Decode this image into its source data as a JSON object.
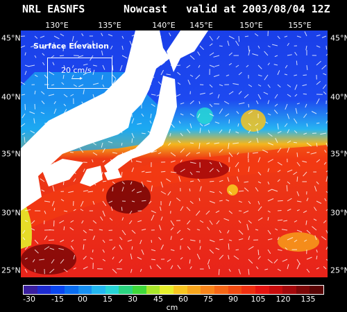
{
  "title": {
    "left": "NRL EASNFS",
    "middle": "Nowcast",
    "right": "valid at 2003/08/04 12Z"
  },
  "longitudes": [
    "130°E",
    "135°E",
    "140°E",
    "145°E",
    "150°E",
    "155°E"
  ],
  "latitudes": [
    "45°N",
    "40°N",
    "35°N",
    "30°N",
    "25°N"
  ],
  "legend": {
    "title": "Surface Elevation",
    "reference_vector": "20 cm/s"
  },
  "colorbar": {
    "ticks": [
      "-30",
      "-15",
      "00",
      "15",
      "30",
      "45",
      "60",
      "75",
      "90",
      "105",
      "120",
      "135"
    ],
    "unit": "cm",
    "colors": [
      "#3a1fa0",
      "#1d2bd0",
      "#0a47f0",
      "#0a6df0",
      "#168ff2",
      "#23b7f0",
      "#27d4d6",
      "#2bd480",
      "#3fd83a",
      "#a8e62a",
      "#e6ee2a",
      "#f7c51f",
      "#f7a51c",
      "#f7841a",
      "#f56615",
      "#f24a10",
      "#ee2f10",
      "#e51410",
      "#c70c0c",
      "#a3080b",
      "#7c0707",
      "#5a0505"
    ]
  },
  "colors": {
    "land": "#ffffff",
    "deep_red": "#e8231a",
    "blue": "#1239e6"
  }
}
